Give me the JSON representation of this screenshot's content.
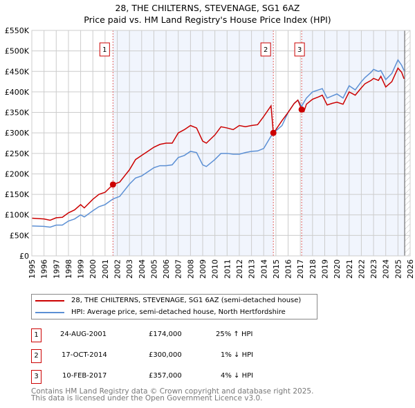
{
  "title": "28, THE CHILTERNS, STEVENAGE, SG1 6AZ",
  "subtitle": "Price paid vs. HM Land Registry's House Price Index (HPI)",
  "chart_data": {
    "type": "line",
    "title": "28, THE CHILTERNS, STEVENAGE, SG1 6AZ",
    "subtitle": "Price paid vs. HM Land Registry's House Price Index (HPI)",
    "xlim": [
      1995,
      2026
    ],
    "ylim": [
      0,
      550000
    ],
    "x_ticks": [
      "1995",
      "1996",
      "1997",
      "1998",
      "1999",
      "2000",
      "2001",
      "2002",
      "2003",
      "2004",
      "2005",
      "2006",
      "2007",
      "2008",
      "2009",
      "2010",
      "2011",
      "2012",
      "2013",
      "2014",
      "2015",
      "2016",
      "2017",
      "2018",
      "2019",
      "2020",
      "2021",
      "2022",
      "2023",
      "2024",
      "2025",
      "2026"
    ],
    "y_ticks": [
      {
        "v": 0,
        "label": "£0"
      },
      {
        "v": 50000,
        "label": "£50K"
      },
      {
        "v": 100000,
        "label": "£100K"
      },
      {
        "v": 150000,
        "label": "£150K"
      },
      {
        "v": 200000,
        "label": "£200K"
      },
      {
        "v": 250000,
        "label": "£250K"
      },
      {
        "v": 300000,
        "label": "£300K"
      },
      {
        "v": 350000,
        "label": "£350K"
      },
      {
        "v": 400000,
        "label": "£400K"
      },
      {
        "v": 450000,
        "label": "£450K"
      },
      {
        "v": 500000,
        "label": "£500K"
      },
      {
        "v": 550000,
        "label": "£550K"
      }
    ],
    "grid": true,
    "legend_placement": "below",
    "series": [
      {
        "name": "28, THE CHILTERNS, STEVENAGE, SG1 6AZ (semi-detached house)",
        "color": "#cc0000",
        "x": [
          1995,
          1996,
          1996.5,
          1997,
          1997.5,
          1998,
          1998.5,
          1999,
          1999.3,
          2000,
          2000.5,
          2001,
          2001.65,
          2002.2,
          2003,
          2003.5,
          2004,
          2004.5,
          2005,
          2005.5,
          2006,
          2006.5,
          2007,
          2007.5,
          2008,
          2008.5,
          2009,
          2009.3,
          2010,
          2010.5,
          2011,
          2011.5,
          2012,
          2012.5,
          2013,
          2013.5,
          2014,
          2014.6,
          2014.79,
          2015,
          2015.5,
          2016,
          2016.5,
          2016.8,
          2017.11,
          2017.3,
          2017.5,
          2018,
          2018.5,
          2018.8,
          2019.2,
          2019.6,
          2020,
          2020.5,
          2021,
          2021.5,
          2022,
          2022.3,
          2022.8,
          2023,
          2023.4,
          2023.6,
          2024,
          2024.5,
          2025,
          2025.3,
          2025.5
        ],
        "y": [
          92000,
          90000,
          87000,
          93000,
          94000,
          105000,
          112000,
          125000,
          117000,
          138000,
          150000,
          155000,
          174000,
          180000,
          210000,
          235000,
          245000,
          255000,
          265000,
          272000,
          275000,
          275000,
          300000,
          308000,
          318000,
          312000,
          280000,
          275000,
          295000,
          315000,
          312000,
          308000,
          318000,
          315000,
          318000,
          320000,
          340000,
          366000,
          300000,
          308000,
          330000,
          350000,
          372000,
          380000,
          357000,
          352000,
          370000,
          382000,
          388000,
          392000,
          368000,
          372000,
          375000,
          370000,
          400000,
          392000,
          410000,
          420000,
          428000,
          433000,
          428000,
          438000,
          412000,
          425000,
          458000,
          448000,
          432000
        ]
      },
      {
        "name": "HPI: Average price, semi-detached house, North Hertfordshire",
        "color": "#5b8fd4",
        "x": [
          1995,
          1996,
          1996.5,
          1997,
          1997.5,
          1998,
          1998.5,
          1999,
          1999.3,
          2000,
          2000.5,
          2001,
          2001.65,
          2002.2,
          2003,
          2003.5,
          2004,
          2004.5,
          2005,
          2005.5,
          2006,
          2006.5,
          2007,
          2007.5,
          2008,
          2008.5,
          2009,
          2009.3,
          2010,
          2010.5,
          2011,
          2011.5,
          2012,
          2012.5,
          2013,
          2013.5,
          2014,
          2014.6,
          2014.79,
          2015,
          2015.5,
          2016,
          2016.5,
          2016.8,
          2017.11,
          2017.3,
          2017.5,
          2018,
          2018.5,
          2018.8,
          2019.2,
          2019.6,
          2020,
          2020.5,
          2021,
          2021.5,
          2022,
          2022.3,
          2022.8,
          2023,
          2023.4,
          2023.6,
          2024,
          2024.5,
          2025,
          2025.3,
          2025.5
        ],
        "y": [
          73000,
          72000,
          70000,
          75000,
          75000,
          85000,
          90000,
          100000,
          95000,
          110000,
          120000,
          125000,
          139000,
          145000,
          175000,
          190000,
          195000,
          205000,
          215000,
          220000,
          220000,
          222000,
          240000,
          245000,
          255000,
          252000,
          222000,
          218000,
          235000,
          250000,
          250000,
          248000,
          248000,
          252000,
          255000,
          256000,
          262000,
          292000,
          296000,
          305000,
          318000,
          350000,
          372000,
          380000,
          365000,
          375000,
          385000,
          400000,
          405000,
          408000,
          385000,
          390000,
          395000,
          385000,
          415000,
          405000,
          425000,
          435000,
          448000,
          455000,
          450000,
          452000,
          430000,
          445000,
          478000,
          465000,
          452000
        ]
      }
    ],
    "sales": [
      {
        "id": "1",
        "x": 2001.65,
        "y": 174000,
        "date": "24-AUG-2001",
        "price": "£174,000",
        "hpi": "25% ↑ HPI"
      },
      {
        "id": "2",
        "x": 2014.79,
        "y": 300000,
        "date": "17-OCT-2014",
        "price": "£300,000",
        "hpi": "1% ↓ HPI"
      },
      {
        "id": "3",
        "x": 2017.11,
        "y": 357000,
        "date": "10-FEB-2017",
        "price": "£357,000",
        "hpi": "4% ↓ HPI"
      }
    ],
    "forecast_from": 2025.55
  },
  "footer": [
    "Contains HM Land Registry data © Crown copyright and database right 2025.",
    "This data is licensed under the Open Government Licence v3.0."
  ]
}
